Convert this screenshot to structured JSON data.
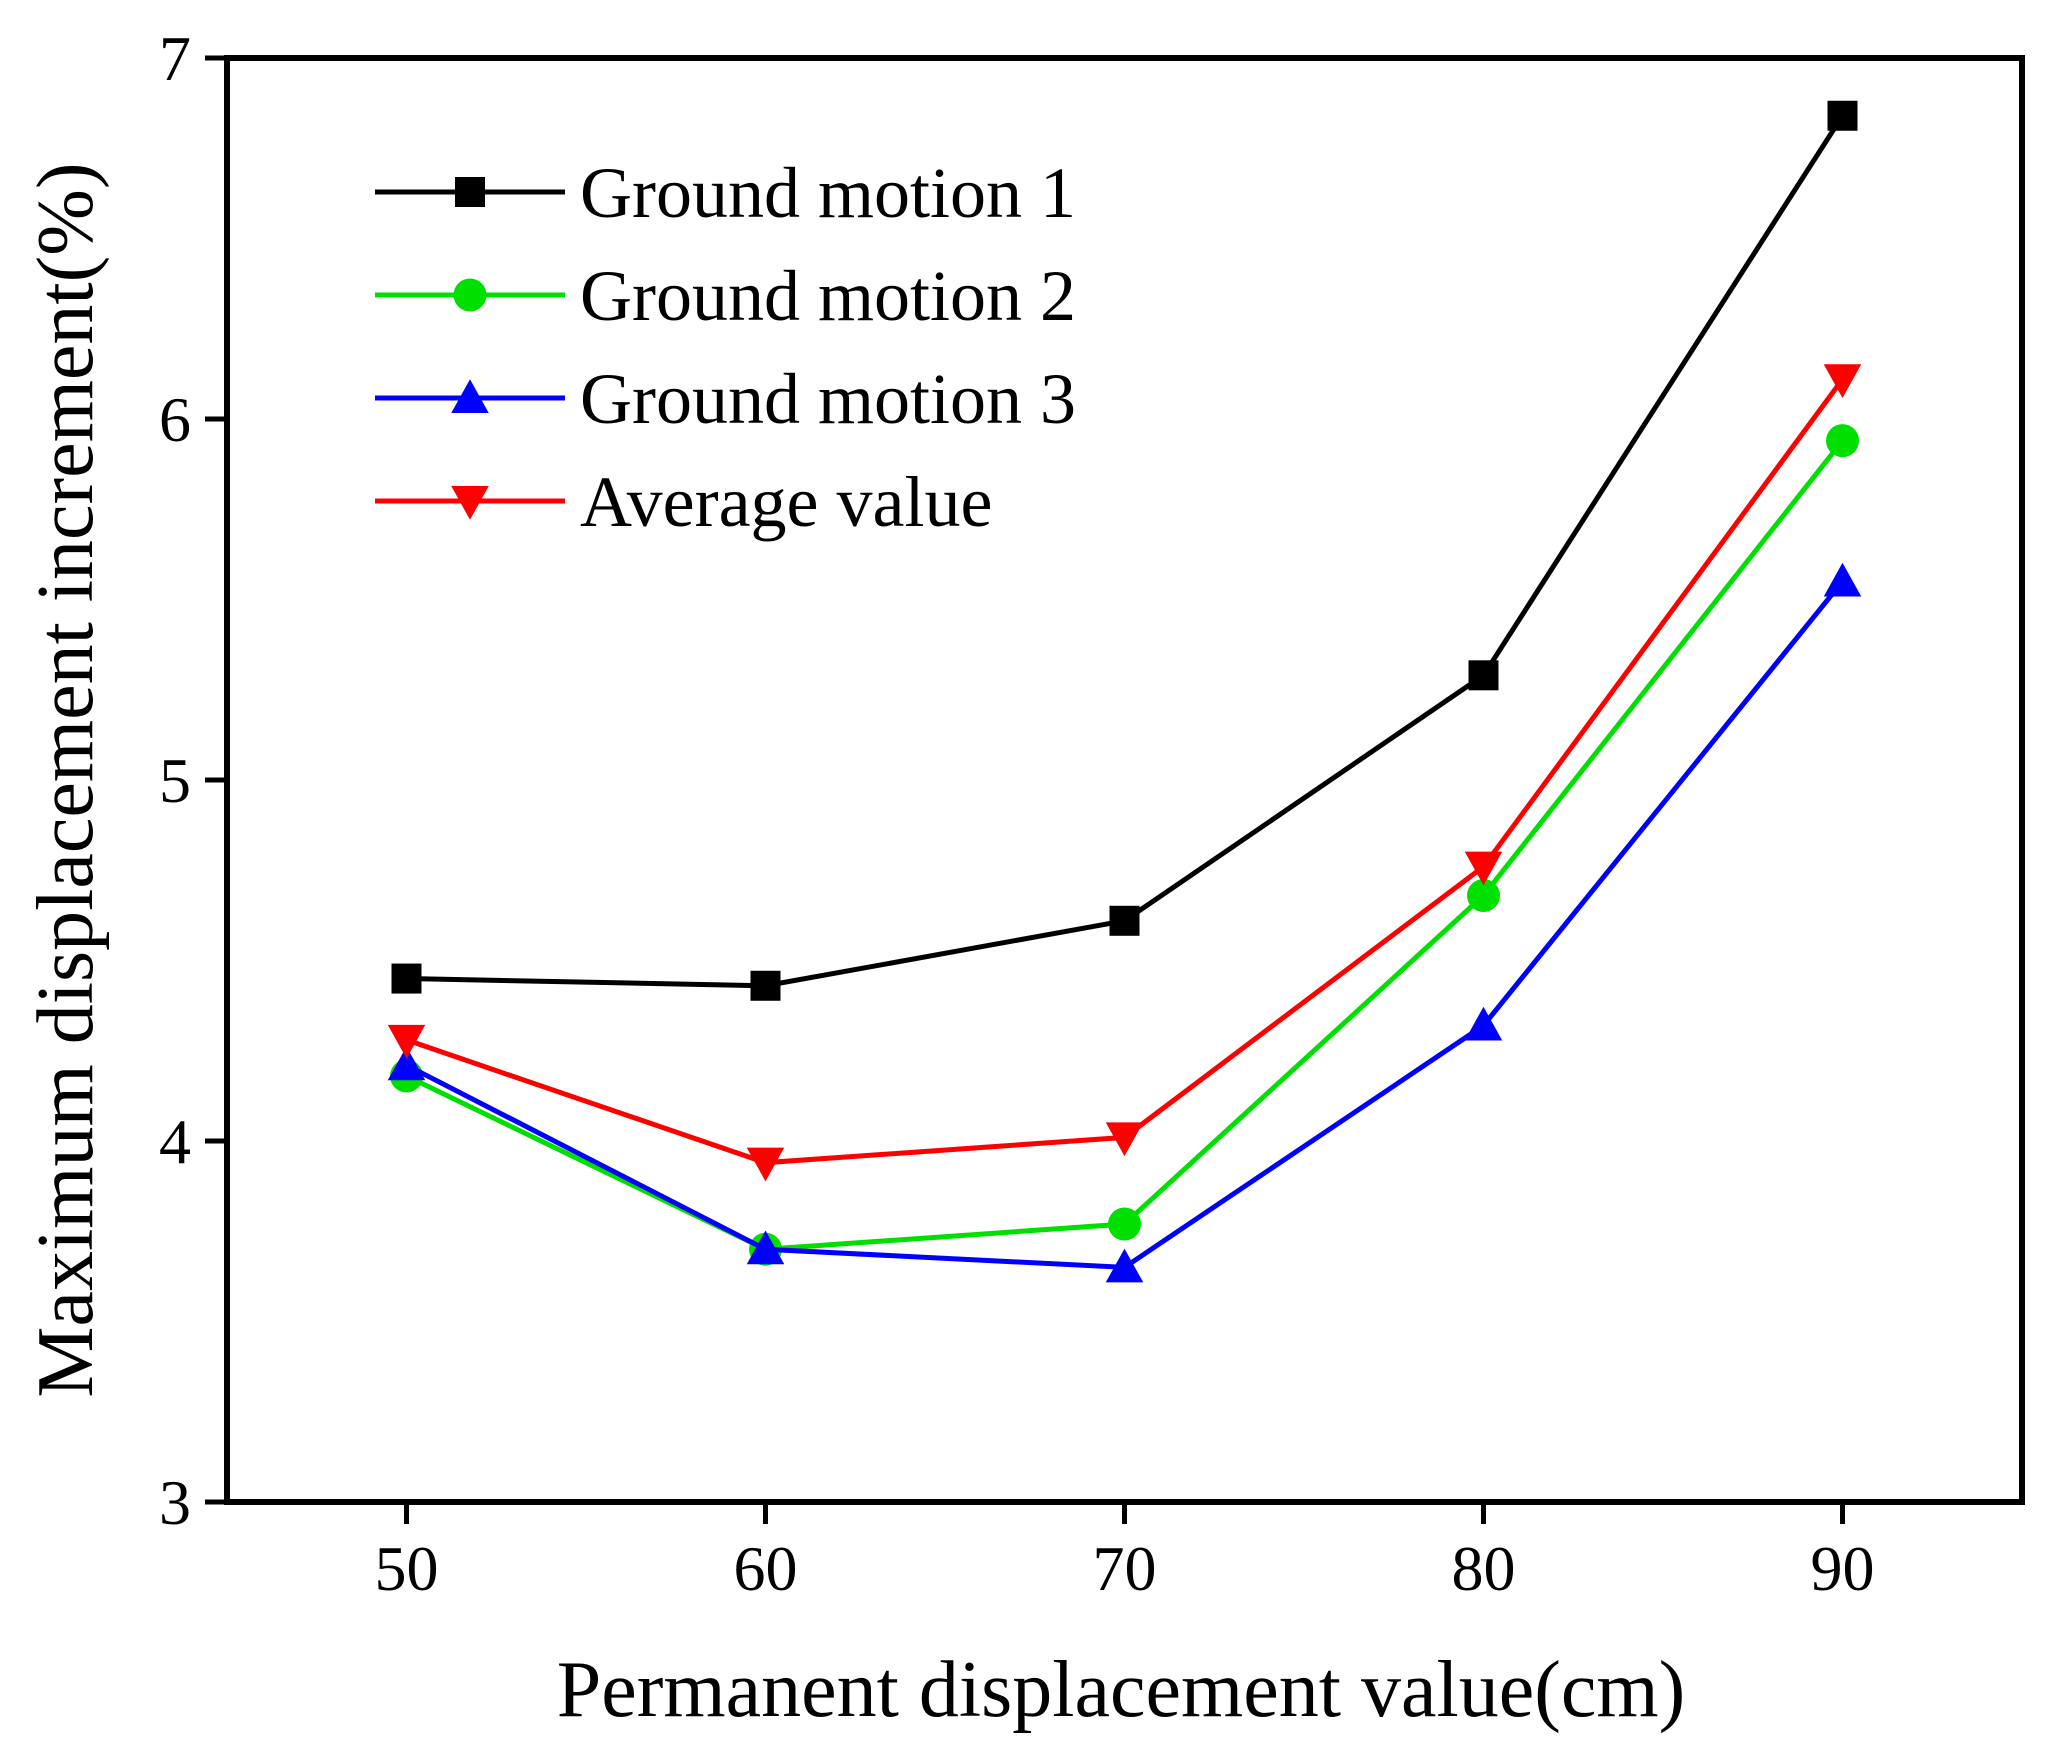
{
  "chart_data": {
    "type": "line",
    "title": "",
    "xlabel": "Permanent displacement value(cm)",
    "ylabel": "Maximum displacement increment(%)",
    "x": [
      50,
      60,
      70,
      80,
      90
    ],
    "xlim": [
      45,
      95
    ],
    "ylim": [
      3,
      7
    ],
    "xticks": [
      50,
      60,
      70,
      80,
      90
    ],
    "yticks": [
      3,
      4,
      5,
      6,
      7
    ],
    "grid": false,
    "legend_position": "top-left",
    "series": [
      {
        "name": "Ground motion 1",
        "values": [
          4.45,
          4.43,
          4.61,
          5.29,
          6.84
        ],
        "color": "#000000",
        "marker": "square"
      },
      {
        "name": "Ground motion 2",
        "values": [
          4.18,
          3.7,
          3.77,
          4.68,
          5.94
        ],
        "color": "#00e000",
        "marker": "circle"
      },
      {
        "name": "Ground motion 3",
        "values": [
          4.21,
          3.7,
          3.65,
          4.32,
          5.55
        ],
        "color": "#0000ff",
        "marker": "triangle-up"
      },
      {
        "name": "Average value",
        "values": [
          4.28,
          3.94,
          4.01,
          4.76,
          6.11
        ],
        "color": "#ff0000",
        "marker": "triangle-down"
      }
    ]
  }
}
